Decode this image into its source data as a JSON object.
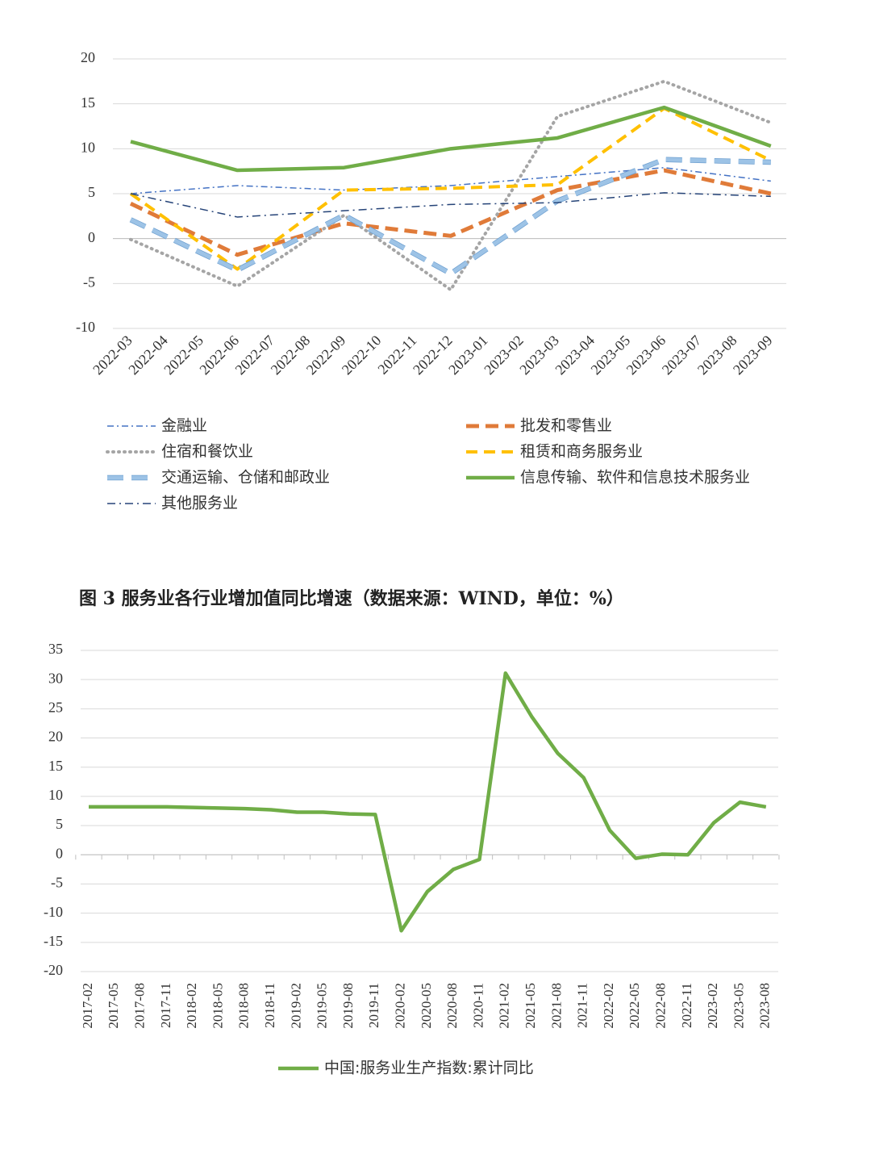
{
  "chart_data": [
    {
      "type": "line",
      "title": "图 3 服务业各行业增加值同比增速（数据来源：WIND，单位：%）",
      "categories": [
        "2022-03",
        "2022-04",
        "2022-05",
        "2022-06",
        "2022-07",
        "2022-08",
        "2022-09",
        "2022-10",
        "2022-11",
        "2022-12",
        "2023-01",
        "2023-02",
        "2023-03",
        "2023-04",
        "2023-05",
        "2023-06",
        "2023-07",
        "2023-08",
        "2023-09"
      ],
      "ylim": [
        -10,
        20
      ],
      "yticks": [
        -10,
        -5,
        0,
        5,
        10,
        15,
        20
      ],
      "grid": true,
      "series": [
        {
          "name": "金融业",
          "color": "#4472c4",
          "values": [
            5.0,
            null,
            null,
            5.9,
            null,
            null,
            5.4,
            null,
            null,
            5.9,
            null,
            null,
            6.9,
            null,
            null,
            7.9,
            null,
            null,
            6.4
          ]
        },
        {
          "name": "批发和零售业",
          "color": "#e07b39",
          "values": [
            3.9,
            null,
            null,
            -1.8,
            null,
            null,
            1.7,
            null,
            null,
            0.3,
            null,
            null,
            5.4,
            null,
            null,
            7.6,
            null,
            null,
            5.0
          ]
        },
        {
          "name": "住宿和餐饮业",
          "color": "#a5a5a5",
          "values": [
            -0.1,
            null,
            null,
            -5.3,
            null,
            null,
            2.6,
            null,
            null,
            -5.7,
            null,
            null,
            13.6,
            null,
            null,
            17.5,
            null,
            null,
            12.9
          ]
        },
        {
          "name": "租赁和商务服务业",
          "color": "#ffc000",
          "values": [
            5.0,
            null,
            null,
            -3.4,
            null,
            null,
            5.4,
            null,
            null,
            5.6,
            null,
            null,
            6.0,
            null,
            null,
            14.5,
            null,
            null,
            8.7
          ]
        },
        {
          "name": "交通运输、仓储和邮政业",
          "color": "#9dc3e6",
          "values": [
            2.1,
            null,
            null,
            -3.5,
            null,
            null,
            2.6,
            null,
            null,
            -3.9,
            null,
            null,
            4.2,
            null,
            null,
            8.8,
            null,
            null,
            8.5
          ]
        },
        {
          "name": "信息传输、软件和信息技术服务业",
          "color": "#70ad47",
          "values": [
            10.8,
            null,
            null,
            7.6,
            null,
            null,
            7.9,
            null,
            null,
            10.0,
            null,
            null,
            11.2,
            null,
            null,
            14.6,
            null,
            null,
            10.3
          ]
        },
        {
          "name": "其他服务业",
          "color": "#264478",
          "values": [
            5.0,
            null,
            null,
            2.4,
            null,
            null,
            3.1,
            null,
            null,
            3.8,
            null,
            null,
            4.0,
            null,
            null,
            5.1,
            null,
            null,
            4.7
          ]
        }
      ]
    },
    {
      "type": "line",
      "categories": [
        "2017-02",
        "2017-05",
        "2017-08",
        "2017-11",
        "2018-02",
        "2018-05",
        "2018-08",
        "2018-11",
        "2019-02",
        "2019-05",
        "2019-08",
        "2019-11",
        "2020-02",
        "2020-05",
        "2020-08",
        "2020-11",
        "2021-02",
        "2021-05",
        "2021-08",
        "2021-11",
        "2022-02",
        "2022-05",
        "2022-08",
        "2022-11",
        "2023-02",
        "2023-05",
        "2023-08"
      ],
      "ylim": [
        -20,
        35
      ],
      "yticks": [
        -20,
        -15,
        -10,
        -5,
        0,
        5,
        10,
        15,
        20,
        25,
        30,
        35
      ],
      "grid": true,
      "series": [
        {
          "name": "中国:服务业生产指数:累计同比",
          "color": "#70ad47",
          "values": [
            8.2,
            8.2,
            8.2,
            8.2,
            8.1,
            8.0,
            7.9,
            7.7,
            7.3,
            7.3,
            7.0,
            6.9,
            -13.0,
            -6.3,
            -2.5,
            -0.8,
            31.1,
            23.7,
            17.4,
            13.2,
            4.2,
            -0.6,
            0.1,
            0.0,
            5.5,
            9.0,
            8.2
          ]
        }
      ]
    }
  ]
}
